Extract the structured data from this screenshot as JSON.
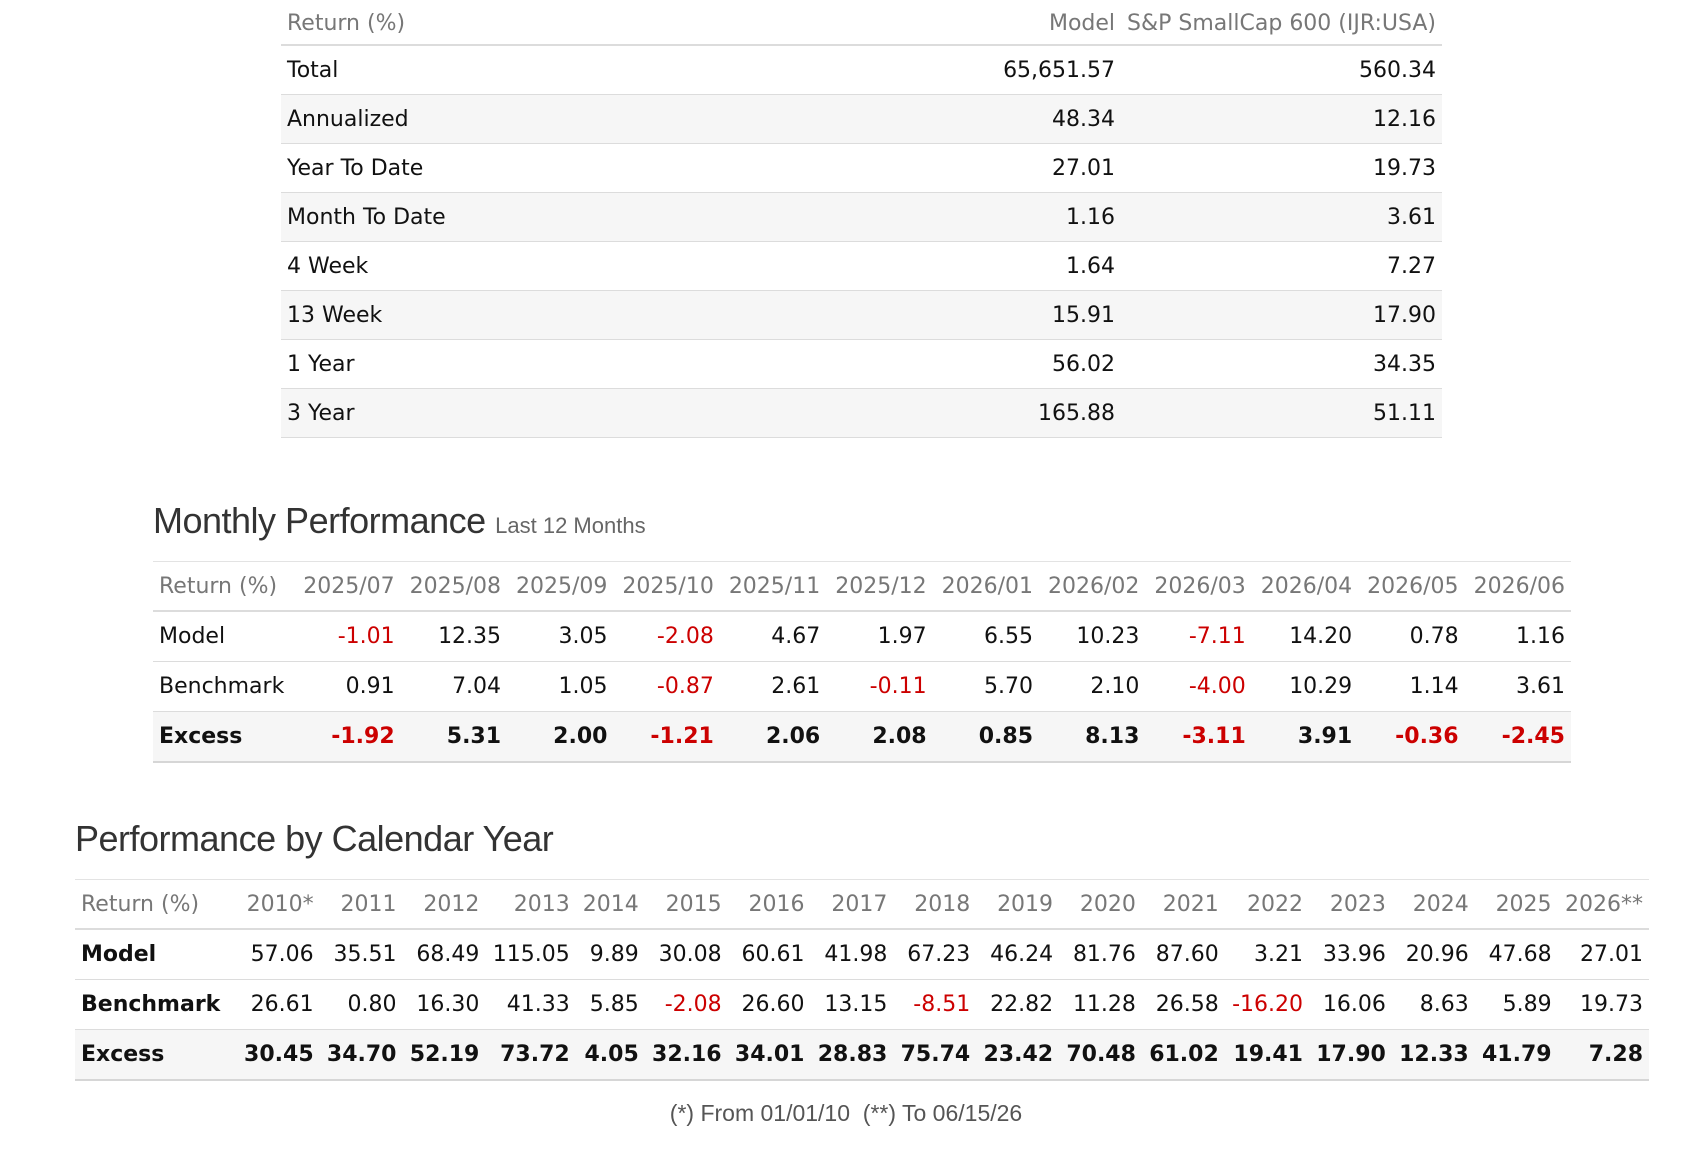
{
  "returns": {
    "headers": [
      "Return (%)",
      "Model",
      "S&P SmallCap 600 (IJR:USA)"
    ],
    "rows": [
      {
        "label": "Total",
        "model": "65,651.57",
        "benchmark": "560.34"
      },
      {
        "label": "Annualized",
        "model": "48.34",
        "benchmark": "12.16"
      },
      {
        "label": "Year To Date",
        "model": "27.01",
        "benchmark": "19.73"
      },
      {
        "label": "Month To Date",
        "model": "1.16",
        "benchmark": "3.61"
      },
      {
        "label": "4 Week",
        "model": "1.64",
        "benchmark": "7.27"
      },
      {
        "label": "13 Week",
        "model": "15.91",
        "benchmark": "17.90"
      },
      {
        "label": "1 Year",
        "model": "56.02",
        "benchmark": "34.35"
      },
      {
        "label": "3 Year",
        "model": "165.88",
        "benchmark": "51.11"
      }
    ]
  },
  "monthly": {
    "title": "Monthly Performance",
    "subtitle": "Last 12 Months",
    "headers": [
      "Return (%)",
      "2025/07",
      "2025/08",
      "2025/09",
      "2025/10",
      "2025/11",
      "2025/12",
      "2026/01",
      "2026/02",
      "2026/03",
      "2026/04",
      "2026/05",
      "2026/06"
    ],
    "rows": [
      {
        "label": "Model",
        "values": [
          "-1.01",
          "12.35",
          "3.05",
          "-2.08",
          "4.67",
          "1.97",
          "6.55",
          "10.23",
          "-7.11",
          "14.20",
          "0.78",
          "1.16"
        ]
      },
      {
        "label": "Benchmark",
        "values": [
          "0.91",
          "7.04",
          "1.05",
          "-0.87",
          "2.61",
          "-0.11",
          "5.70",
          "2.10",
          "-4.00",
          "10.29",
          "1.14",
          "3.61"
        ]
      },
      {
        "label": "Excess",
        "values": [
          "-1.92",
          "5.31",
          "2.00",
          "-1.21",
          "2.06",
          "2.08",
          "0.85",
          "8.13",
          "-3.11",
          "3.91",
          "-0.36",
          "-2.45"
        ]
      }
    ]
  },
  "annual": {
    "title": "Performance by Calendar Year",
    "headers": [
      "Return (%)",
      "2010*",
      "2011",
      "2012",
      "2013",
      "2014",
      "2015",
      "2016",
      "2017",
      "2018",
      "2019",
      "2020",
      "2021",
      "2022",
      "2023",
      "2024",
      "2025",
      "2026**"
    ],
    "rows": [
      {
        "label": "Model",
        "values": [
          "57.06",
          "35.51",
          "68.49",
          "115.05",
          "9.89",
          "30.08",
          "60.61",
          "41.98",
          "67.23",
          "46.24",
          "81.76",
          "87.60",
          "3.21",
          "33.96",
          "20.96",
          "47.68",
          "27.01"
        ]
      },
      {
        "label": "Benchmark",
        "values": [
          "26.61",
          "0.80",
          "16.30",
          "41.33",
          "5.85",
          "-2.08",
          "26.60",
          "13.15",
          "-8.51",
          "22.82",
          "11.28",
          "26.58",
          "-16.20",
          "16.06",
          "8.63",
          "5.89",
          "19.73"
        ]
      },
      {
        "label": "Excess",
        "values": [
          "30.45",
          "34.70",
          "52.19",
          "73.72",
          "4.05",
          "32.16",
          "34.01",
          "28.83",
          "75.74",
          "23.42",
          "70.48",
          "61.02",
          "19.41",
          "17.90",
          "12.33",
          "41.79",
          "7.28"
        ]
      }
    ]
  },
  "footnote": "(*) From 01/01/10  (**) To 06/15/26",
  "colors": {
    "negative": "#cc0000",
    "header_text": "#777777",
    "stripe": "#f6f6f6"
  }
}
